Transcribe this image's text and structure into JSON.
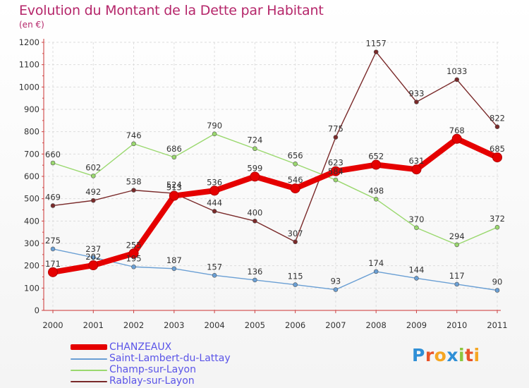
{
  "chart_data": {
    "type": "line",
    "title": "Evolution du Montant de la Dette par Habitant",
    "ylabel": "(en €)",
    "xlabel": "",
    "ylim": [
      0,
      1200
    ],
    "y_ticks": [
      0,
      100,
      200,
      300,
      400,
      500,
      600,
      700,
      800,
      900,
      1000,
      1100,
      1200
    ],
    "grid": true,
    "legend_position": "bottom-left",
    "categories": [
      "2000",
      "2001",
      "2002",
      "2003",
      "2004",
      "2005",
      "2006",
      "2007",
      "2008",
      "2009",
      "2010",
      "2011"
    ],
    "series": [
      {
        "name": "CHANZEAUX",
        "color": "#e50000",
        "values": [
          171,
          202,
          255,
          513,
          536,
          599,
          546,
          623,
          652,
          631,
          768,
          685
        ]
      },
      {
        "name": "Saint-Lambert-du-Lattay",
        "color": "#6a9fd4",
        "values": [
          275,
          237,
          195,
          187,
          157,
          136,
          115,
          93,
          174,
          144,
          117,
          90
        ]
      },
      {
        "name": "Champ-sur-Layon",
        "color": "#9ad86e",
        "values": [
          660,
          602,
          746,
          686,
          790,
          724,
          656,
          584,
          498,
          370,
          294,
          372
        ]
      },
      {
        "name": "Rablay-sur-Layon",
        "color": "#7a2a2a",
        "values": [
          469,
          492,
          538,
          524,
          444,
          400,
          307,
          775,
          1157,
          933,
          1033,
          822
        ]
      }
    ]
  },
  "logo": {
    "letters": [
      {
        "char": "P",
        "color": "#2f8fd6"
      },
      {
        "char": "r",
        "color": "#e8542a"
      },
      {
        "char": "o",
        "color": "#f5a623"
      },
      {
        "char": "x",
        "color": "#2f8fd6"
      },
      {
        "char": "i",
        "color": "#8cc63f"
      },
      {
        "char": "t",
        "color": "#e8542a"
      },
      {
        "char": "i",
        "color": "#f5a623"
      }
    ]
  }
}
